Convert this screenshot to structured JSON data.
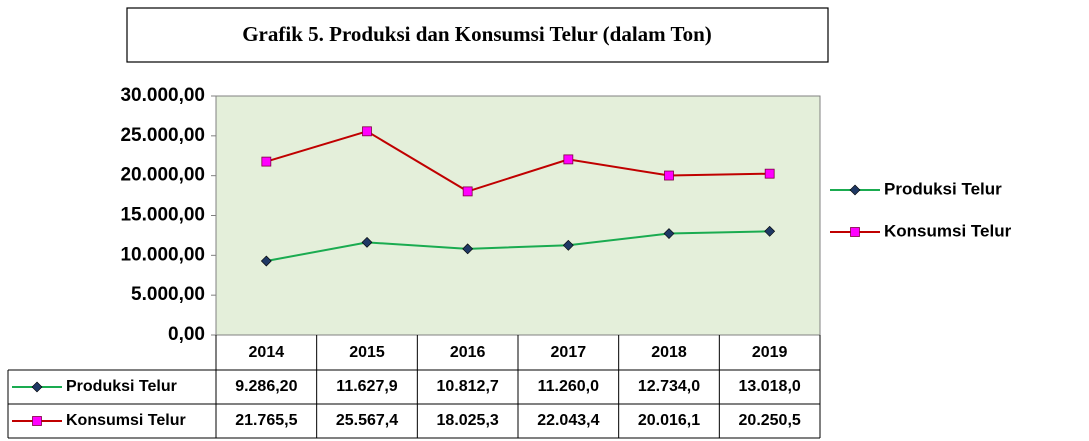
{
  "chart_data": {
    "type": "line",
    "title": "Grafik 5. Produksi dan Konsumsi Telur (dalam Ton)",
    "categories": [
      "2014",
      "2015",
      "2016",
      "2017",
      "2018",
      "2019"
    ],
    "series": [
      {
        "name": "Produksi Telur",
        "color": "#1aab50",
        "marker_color": "#1f3864",
        "marker": "diamond",
        "values": [
          9286.2,
          11627.9,
          10812.7,
          11260.0,
          12734.0,
          13018.0
        ],
        "value_labels": [
          "9.286,20",
          "11.627,9",
          "10.812,7",
          "11.260,0",
          "12.734,0",
          "13.018,0"
        ]
      },
      {
        "name": "Konsumsi Telur",
        "color": "#c00000",
        "marker_color": "#ff00ff",
        "marker": "square",
        "values": [
          21765.5,
          25567.4,
          18025.3,
          22043.4,
          20016.1,
          20250.5
        ],
        "value_labels": [
          "21.765,5",
          "25.567,4",
          "18.025,3",
          "22.043,4",
          "20.016,1",
          "20.250,5"
        ]
      }
    ],
    "ylim": [
      0,
      30000
    ],
    "yticks": [
      {
        "value": 0,
        "label": "0,00"
      },
      {
        "value": 5000,
        "label": "5.000,00"
      },
      {
        "value": 10000,
        "label": "10.000,00"
      },
      {
        "value": 15000,
        "label": "15.000,00"
      },
      {
        "value": 20000,
        "label": "20.000,00"
      },
      {
        "value": 25000,
        "label": "25.000,00"
      },
      {
        "value": 30000,
        "label": "30.000,00"
      }
    ],
    "plot_background": "#e4efda",
    "legend": "right",
    "data_table": true
  }
}
